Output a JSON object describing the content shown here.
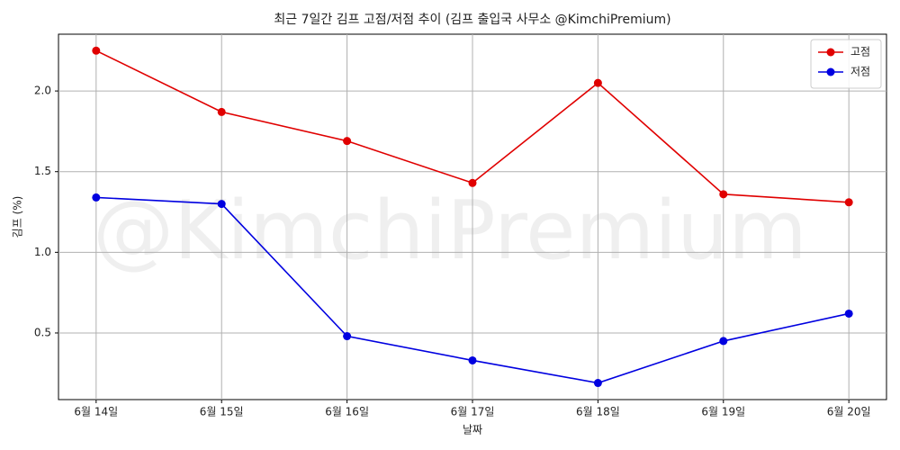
{
  "chart_data": {
    "type": "line",
    "title": "최근 7일간 김프 고점/저점 추이 (김프 출입국 사무소 @KimchiPremium)",
    "watermark": "@KimchiPremium",
    "x_label": "날짜",
    "y_label": "김프 (%)",
    "categories": [
      "6월 14일",
      "6월 15일",
      "6월 16일",
      "6월 17일",
      "6월 18일",
      "6월 19일",
      "6월 20일"
    ],
    "series": [
      {
        "name": "고점",
        "color": "#e00000",
        "values": [
          2.25,
          1.87,
          1.69,
          1.43,
          2.05,
          1.36,
          1.31
        ]
      },
      {
        "name": "저점",
        "color": "#0000e0",
        "values": [
          1.34,
          1.3,
          0.48,
          0.33,
          0.19,
          0.45,
          0.62
        ]
      }
    ],
    "ylim": [
      0.087,
      2.352
    ],
    "yticks": [
      {
        "value": 0.5,
        "label": "0.5"
      },
      {
        "value": 1,
        "label": "1.0"
      },
      {
        "value": 1.5,
        "label": "1.5"
      },
      {
        "value": 2,
        "label": "2.0"
      }
    ],
    "grid": true,
    "legend": "upper right"
  }
}
